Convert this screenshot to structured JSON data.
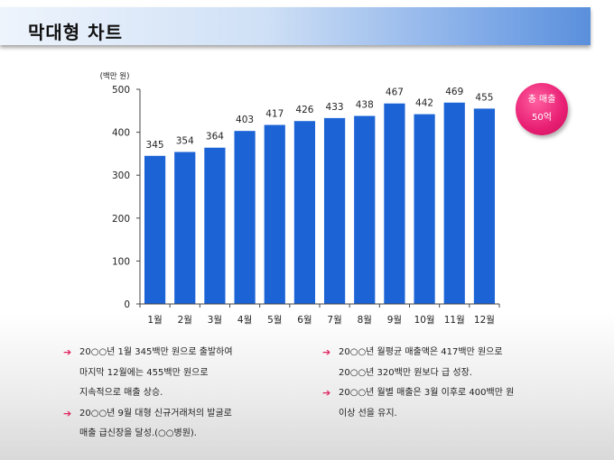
{
  "header": {
    "title": "막대형 차트"
  },
  "badge": {
    "line1": "총 매출",
    "line2": "50억"
  },
  "chart_data": {
    "type": "bar",
    "unit_label": "(백만 원)",
    "categories": [
      "1월",
      "2월",
      "3월",
      "4월",
      "5월",
      "6월",
      "7월",
      "8월",
      "9월",
      "10월",
      "11월",
      "12월"
    ],
    "values": [
      345,
      354,
      364,
      403,
      417,
      426,
      433,
      438,
      467,
      442,
      469,
      455
    ],
    "yticks": [
      0,
      100,
      200,
      300,
      400,
      500
    ],
    "ylim": [
      0,
      500
    ],
    "bar_color": "#1c64d6",
    "grid": false
  },
  "notes": {
    "left": [
      {
        "lines": [
          "20○○년 1월 345백만 원으로 출발하여",
          "마지막 12월에는 455백만 원으로",
          "지속적으로 매출 상승."
        ]
      },
      {
        "lines": [
          "20○○년 9월 대형 신규거래처의 발굴로",
          "매출 급신장을 달성.(○○병원)."
        ]
      }
    ],
    "right": [
      {
        "lines": [
          "20○○년 월평균 매출액은 417백만 원으로",
          "20○○년 320백만 원보다 급 성장."
        ]
      },
      {
        "lines": [
          "20○○년 월별 매출은 3월 이후로 400백만 원",
          "이상 선을 유지."
        ]
      }
    ]
  },
  "colors": {
    "accent": "#e0245e",
    "badge": "#e81e73"
  }
}
